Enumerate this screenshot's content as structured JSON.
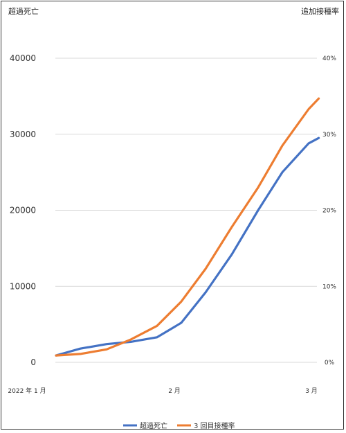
{
  "chart_data": {
    "type": "line",
    "ylabel_left": "超過死亡",
    "ylabel_right": "追加接種率",
    "x_tick_labels": [
      "2022 年 1 月",
      "2 月",
      "3 月"
    ],
    "y_left": {
      "lim": [
        0,
        40000
      ],
      "ticks": [
        "0",
        "10000",
        "20000",
        "30000",
        "40000"
      ]
    },
    "y_right": {
      "lim": [
        0,
        0.4
      ],
      "ticks": [
        "0%",
        "10%",
        "20%",
        "30%",
        "40%"
      ]
    },
    "legend_position": "bottom",
    "series": [
      {
        "name": "超過死亡",
        "color": "#4472C4",
        "axis": "left",
        "points": [
          [
            0.0,
            900
          ],
          [
            0.12,
            1800
          ],
          [
            0.25,
            2400
          ],
          [
            0.37,
            2700
          ],
          [
            0.5,
            3300
          ],
          [
            0.62,
            5200
          ],
          [
            0.74,
            9200
          ],
          [
            0.87,
            14200
          ],
          [
            1.0,
            20000
          ],
          [
            1.12,
            25000
          ],
          [
            1.25,
            28800
          ],
          [
            1.3,
            29500
          ]
        ]
      },
      {
        "name": "3 回目接種率",
        "color": "#ED7D31",
        "axis": "right",
        "points": [
          [
            0.0,
            0.009
          ],
          [
            0.12,
            0.011
          ],
          [
            0.25,
            0.017
          ],
          [
            0.37,
            0.03
          ],
          [
            0.5,
            0.048
          ],
          [
            0.62,
            0.08
          ],
          [
            0.74,
            0.123
          ],
          [
            0.87,
            0.178
          ],
          [
            1.0,
            0.23
          ],
          [
            1.12,
            0.285
          ],
          [
            1.25,
            0.333
          ],
          [
            1.3,
            0.347
          ]
        ]
      }
    ]
  }
}
